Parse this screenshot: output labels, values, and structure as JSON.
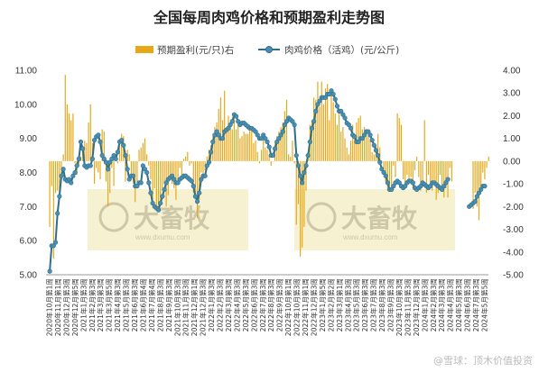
{
  "chart_data": {
    "type": "bar+line",
    "title": "全国每周肉鸡价格和预期盈利走势图",
    "legend": [
      {
        "name": "预期盈利(元/只)右",
        "color": "#e6a817",
        "kind": "bar"
      },
      {
        "name": "肉鸡价格（活鸡）(元/公斤)",
        "color": "#4a8fb0",
        "kind": "line"
      }
    ],
    "legend_position": "top",
    "y_left": {
      "min": 5.0,
      "max": 11.0,
      "step": 1.0,
      "ticks": [
        "5.00",
        "6.00",
        "7.00",
        "8.00",
        "9.00",
        "10.00",
        "11.00"
      ]
    },
    "y_right": {
      "min": -5.0,
      "max": 4.0,
      "step": 1.0,
      "ticks": [
        "-5.00",
        "-4.00",
        "-3.00",
        "-2.00",
        "-1.00",
        "0.00",
        "1.00",
        "2.00",
        "3.00",
        "4.00"
      ]
    },
    "x_labels": [
      "2020年10月第1周",
      "2020年11月第1周",
      "2020年12月第3周",
      "2020年12月第5周",
      "2021年1月第3周",
      "2021年2月第3周",
      "2021年3月第3周",
      "2021年3月第5周",
      "2021年4月第3周",
      "2021年5月第3周",
      "2021年6月第3周",
      "2021年6月第4周",
      "2021年7月第4周",
      "2021年8月第3周",
      "2021年9月第3周",
      "2021年10月第3周",
      "2021年11月第3周",
      "2021年12月第1周",
      "2021年12月第3周",
      "2022年1月第3周",
      "2022年2月第3周",
      "2022年3月第3周",
      "2022年4月第3周",
      "2022年5月第3周",
      "2022年6月第3周",
      "2022年7月第3周",
      "2022年8月第3周",
      "2022年9月第3周",
      "2022年10月第1周",
      "2022年10月第3周",
      "2022年11月第1周",
      "2022年12月第3周",
      "2023年1月第5周",
      "2023年2月第2周",
      "2023年3月第1周",
      "2023年4月第3周",
      "2023年5月第3周",
      "2023年6月第3周",
      "2023年7月第3周",
      "2023年8月第3周",
      "2023年9月第3周",
      "2023年10月第3周",
      "2023年11月第3周",
      "2023年12月第3周",
      "2024年1月第3周",
      "2024年2月第3周",
      "2024年3月第3周",
      "2024年4月第3周",
      "2024年5月第3周",
      "2024年6月第3周",
      "2024年7月第3周",
      "2024年5月第5周"
    ],
    "price": [
      5.1,
      5.85,
      5.85,
      5.95,
      6.8,
      7.3,
      7.9,
      8.1,
      7.8,
      7.75,
      7.8,
      7.7,
      7.9,
      8.0,
      8.2,
      8.4,
      8.9,
      8.7,
      8.2,
      8.15,
      8.2,
      8.2,
      8.4,
      8.95,
      9.05,
      9.1,
      8.9,
      8.5,
      8.4,
      8.3,
      8.1,
      8.3,
      8.4,
      8.5,
      8.4,
      8.6,
      8.9,
      8.95,
      8.8,
      8.5,
      8.1,
      7.8,
      7.9,
      7.9,
      7.6,
      7.6,
      7.7,
      7.7,
      8.2,
      8.1,
      8.0,
      7.7,
      7.4,
      7.1,
      7.0,
      6.95,
      6.9,
      7.1,
      7.3,
      7.5,
      7.7,
      7.8,
      7.85,
      7.9,
      7.8,
      7.7,
      7.7,
      7.8,
      7.85,
      7.9,
      7.9,
      7.85,
      7.8,
      7.75,
      7.6,
      7.3,
      7.15,
      7.4,
      7.8,
      7.9,
      7.9,
      8.2,
      8.3,
      8.6,
      8.9,
      9.1,
      9.2,
      9.1,
      9.0,
      9.0,
      9.2,
      9.25,
      9.3,
      9.4,
      9.5,
      9.7,
      9.65,
      9.5,
      9.4,
      9.45,
      9.45,
      9.4,
      9.35,
      9.3,
      9.3,
      9.25,
      9.2,
      9.1,
      9.0,
      9.0,
      9.1,
      9.0,
      8.9,
      8.75,
      8.5,
      8.5,
      8.7,
      8.9,
      9.0,
      9.1,
      9.2,
      9.4,
      9.5,
      9.6,
      9.55,
      9.5,
      9.4,
      8.5,
      8.2,
      7.9,
      7.7,
      8.0,
      8.2,
      8.5,
      8.9,
      9.3,
      9.5,
      9.8,
      10.0,
      10.1,
      10.2,
      10.2,
      10.2,
      10.3,
      10.3,
      10.4,
      10.3,
      10.15,
      9.95,
      9.8,
      9.8,
      9.7,
      9.6,
      9.45,
      9.4,
      9.3,
      9.1,
      9.05,
      8.9,
      8.9,
      9.0,
      9.0,
      9.1,
      9.2,
      9.2,
      9.1,
      8.95,
      8.8,
      8.65,
      8.5,
      8.3,
      8.1,
      8.0,
      7.9,
      7.7,
      7.5,
      7.5,
      7.6,
      7.7,
      7.75,
      7.7,
      7.6,
      7.55,
      7.6,
      7.7,
      7.75,
      7.75,
      7.7,
      7.55,
      7.5,
      7.55,
      7.6,
      7.7,
      7.65,
      7.6,
      7.55,
      7.6,
      7.7,
      7.7,
      7.65,
      7.6,
      7.55,
      7.5,
      7.6,
      7.7,
      7.8,
      null,
      null,
      null,
      null,
      null,
      null,
      null,
      null,
      null,
      null,
      7.0,
      7.05,
      7.1,
      7.15,
      7.3,
      7.4,
      7.5,
      7.6,
      7.6
    ],
    "profit": [
      -2.9,
      -1.1,
      -4.3,
      -1.4,
      -1.3,
      -1.5,
      -0.6,
      0.3,
      3.8,
      2.5,
      2.1,
      1.8,
      2.1,
      -0.1,
      -0.6,
      -0.2,
      0.2,
      0.5,
      0.9,
      0.8,
      1.7,
      2.5,
      0.8,
      -1.0,
      -0.3,
      -0.5,
      -0.8,
      1.4,
      1.3,
      -0.9,
      -2.0,
      -1.4,
      -0.3,
      -1.1,
      0.3,
      -0.1,
      0.7,
      1.2,
      1.1,
      -0.9,
      0.5,
      0.3,
      -0.6,
      -1.0,
      -1.8,
      -0.9,
      0.5,
      0.6,
      0.8,
      1.0,
      0.3,
      -0.2,
      -0.8,
      -1.9,
      -1.2,
      -2.0,
      -2.2,
      -1.8,
      -1.2,
      -1.0,
      -2.0,
      -1.5,
      -0.7,
      -1.0,
      -1.2,
      -1.7,
      -1.0,
      -0.3,
      -0.6,
      0.1,
      0.2,
      0.4,
      -0.2,
      -0.1,
      -1.4,
      -1.6,
      -2.5,
      -1.7,
      -0.5,
      -0.8,
      -0.4,
      0.2,
      0.5,
      0.7,
      1.1,
      1.5,
      1.7,
      2.3,
      2.8,
      1.8,
      3.1,
      1.5,
      2.0,
      1.5,
      1.4,
      2.1,
      1.4,
      1.7,
      1.0,
      1.1,
      1.3,
      1.2,
      1.2,
      1.6,
      1.5,
      0.8,
      0.9,
      0.4,
      -0.1,
      0.5,
      1.1,
      0.6,
      0.5,
      0.3,
      -0.2,
      0.0,
      0.8,
      1.1,
      1.3,
      1.5,
      1.7,
      2.2,
      2.7,
      0.3,
      0.2,
      0.9,
      -0.1,
      -2.8,
      -1.9,
      -4.2,
      -3.8,
      -2.9,
      -1.3,
      0.2,
      1.6,
      1.8,
      2.8,
      2.7,
      3.5,
      2.4,
      3.5,
      2.5,
      3.2,
      3.4,
      1.8,
      3.0,
      2.6,
      2.1,
      1.6,
      2.2,
      1.3,
      1.5,
      1.0,
      0.6,
      0.3,
      0.9,
      1.6,
      1.2,
      1.7,
      1.9,
      2.0,
      1.4,
      1.5,
      1.2,
      1.1,
      0.9,
      0.4,
      0.3,
      0.7,
      1.2,
      0.6,
      0.0,
      -0.3,
      -0.9,
      -1.3,
      -1.1,
      -1.2,
      -0.2,
      -0.7,
      2.1,
      1.9,
      1.6,
      -0.8,
      -1.2,
      -0.6,
      -0.9,
      -0.7,
      -1.2,
      -0.4,
      0.2,
      -0.7,
      -1.3,
      -0.9,
      1.8,
      -1.4,
      -0.6,
      -1.1,
      -1.3,
      -1.0,
      -1.7,
      -1.4,
      -0.6,
      -1.1,
      -1.6,
      -1.2,
      -1.6,
      -0.3,
      -0.9,
      null,
      null,
      null,
      null,
      null,
      null,
      null,
      null,
      null,
      null,
      -2.1,
      -1.4,
      -2.0,
      -2.6,
      -1.2,
      -0.5,
      -0.8,
      -0.3,
      0.2
    ],
    "grid": false
  },
  "watermark": {
    "main": "大畜牧",
    "sub": "www.dxumu.com"
  },
  "brand": "@雪球：顶木价值投资"
}
